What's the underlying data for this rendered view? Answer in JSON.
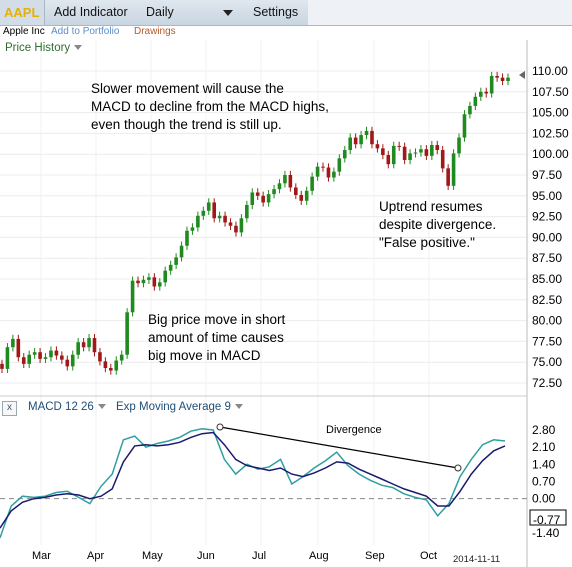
{
  "toolbar": {
    "symbol": "AAPL",
    "add_indicator": "Add Indicator",
    "interval": "Daily",
    "settings": "Settings"
  },
  "subbar": {
    "company": "Apple Inc",
    "add_to_portfolio": "Add to Portfolio",
    "drawings": "Drawings"
  },
  "price_panel": {
    "label": "Price History"
  },
  "annotations": {
    "slower_movement": "Slower movement will cause the\nMACD to decline from the MACD highs,\neven though the trend is still up.",
    "uptrend": "Uptrend resumes\ndespite divergence.\n\"False positive.\"",
    "big_move": "Big price move in short\namount of time causes\nbig move in MACD",
    "divergence": "Divergence"
  },
  "macd_panel": {
    "close": "x",
    "macd_label": "MACD 12 26",
    "ema_label": "Exp Moving Average 9",
    "current_value": "-0.77"
  },
  "date_label": "2014-11-11",
  "colors": {
    "up_candle": "#1f8a1f",
    "down_candle": "#a01818",
    "macd_line": "#2f9fa0",
    "signal_line": "#1a1a6e",
    "zero_line": "#888888",
    "symbol": "#e8b000"
  },
  "chart_data": [
    {
      "type": "candlestick",
      "title": "",
      "y_ticks": [
        "110.00",
        "107.50",
        "105.00",
        "102.50",
        "100.00",
        "97.50",
        "95.00",
        "92.50",
        "90.00",
        "87.50",
        "85.00",
        "82.50",
        "80.00",
        "77.50",
        "75.00",
        "72.50"
      ],
      "x_ticks": [
        "Mar",
        "Apr",
        "May",
        "Jun",
        "Jul",
        "Aug",
        "Sep",
        "Oct"
      ],
      "ylim": [
        72.5,
        110
      ],
      "close_approx": [
        74.2,
        76.8,
        77.8,
        75.6,
        74.8,
        75.9,
        76.2,
        75.4,
        75.6,
        76.4,
        75.8,
        75.3,
        74.5,
        75.9,
        77.4,
        76.8,
        77.9,
        76.2,
        75.1,
        74.3,
        74.0,
        75.2,
        75.9,
        81.0,
        84.8,
        84.5,
        84.9,
        85.2,
        84.1,
        84.6,
        86.0,
        86.7,
        87.6,
        89.0,
        90.8,
        91.2,
        92.6,
        93.2,
        94.2,
        92.3,
        92.6,
        91.8,
        91.4,
        90.6,
        92.3,
        93.9,
        95.4,
        95.0,
        94.2,
        95.2,
        95.8,
        96.5,
        97.5,
        96.0,
        95.1,
        94.4,
        95.6,
        97.3,
        98.5,
        98.4,
        97.2,
        97.9,
        99.5,
        100.5,
        102.0,
        101.2,
        102.3,
        102.8,
        101.2,
        100.7,
        99.9,
        98.8,
        101.0,
        100.9,
        99.3,
        100.1,
        100.2,
        100.6,
        99.8,
        101.1,
        100.5,
        98.3,
        96.2,
        100.1,
        102.0,
        104.8,
        105.8,
        106.9,
        107.5,
        107.3,
        109.4,
        109.2,
        108.8,
        109.2
      ]
    },
    {
      "type": "line",
      "title": "",
      "series": [
        {
          "name": "MACD 12 26",
          "values": [
            -1.6,
            -0.3,
            0.1,
            0.05,
            0.1,
            0.25,
            0.3,
            0.05,
            -0.2,
            0.5,
            1.0,
            2.4,
            2.55,
            2.1,
            2.25,
            2.35,
            2.5,
            2.75,
            2.85,
            2.8,
            1.6,
            1.0,
            1.4,
            1.2,
            1.3,
            1.6,
            0.6,
            0.9,
            1.25,
            1.55,
            1.9,
            1.35,
            1.0,
            0.75,
            0.55,
            0.45,
            0.2,
            0.05,
            -0.05,
            -0.7,
            -0.2,
            0.9,
            1.6,
            2.2,
            2.4,
            2.35
          ]
        },
        {
          "name": "Exp Moving Average 9",
          "values": [
            -1.2,
            -0.5,
            -0.15,
            0.0,
            0.05,
            0.15,
            0.2,
            0.15,
            0.0,
            0.1,
            0.4,
            1.5,
            2.15,
            2.2,
            2.15,
            2.2,
            2.3,
            2.5,
            2.65,
            2.7,
            2.2,
            1.6,
            1.35,
            1.25,
            1.15,
            1.25,
            1.0,
            0.9,
            1.05,
            1.25,
            1.5,
            1.45,
            1.2,
            1.0,
            0.8,
            0.6,
            0.4,
            0.25,
            0.1,
            -0.3,
            -0.3,
            0.3,
            1.0,
            1.55,
            1.95,
            2.15
          ]
        }
      ],
      "y_ticks": [
        "2.80",
        "2.10",
        "1.40",
        "0.70",
        "0.00",
        "-0.70",
        "-1.40"
      ],
      "ylim": [
        -1.4,
        2.8
      ],
      "trendline": "Divergence"
    }
  ]
}
